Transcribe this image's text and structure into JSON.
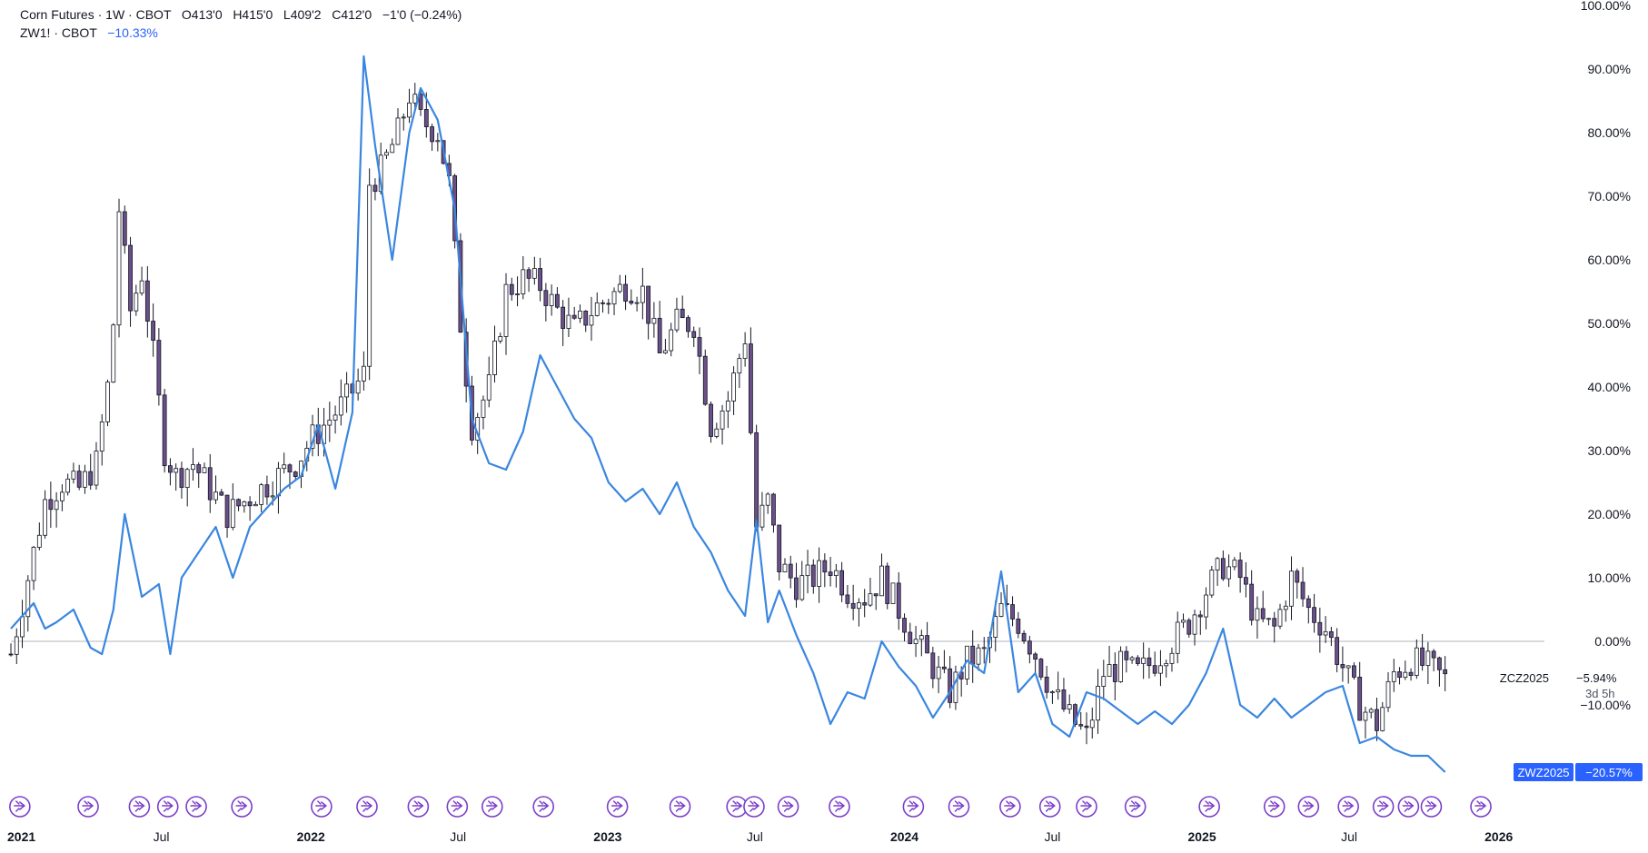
{
  "legend": {
    "main_name": "Corn Futures",
    "main_interval": "1W",
    "main_exchange": "CBOT",
    "ohlc": {
      "open": "O413'0",
      "high": "H415'0",
      "low": "L409'2",
      "close": "C412'0",
      "change": "−1'0 (−0.24%)"
    },
    "compare_symbol": "ZW1!",
    "compare_exchange": "CBOT",
    "compare_change": "−10.33%"
  },
  "colors": {
    "candle_up_body": "#ffffff",
    "candle_down_body": "#6b4f8a",
    "candle_wick": "#131722",
    "compare_line": "#3a86e0",
    "zero_line": "#b2b5be",
    "event_icon": "#7b3fc9",
    "badge_blue": "#2962ff"
  },
  "price_axis": {
    "ticks": [
      "100.00%",
      "90.00%",
      "80.00%",
      "70.00%",
      "60.00%",
      "50.00%",
      "40.00%",
      "30.00%",
      "20.00%",
      "10.00%",
      "0.00%",
      "−10.00%"
    ]
  },
  "time_axis": {
    "labels": [
      {
        "text": "2021",
        "date": "2021-01-01",
        "year": true
      },
      {
        "text": "Jul",
        "date": "2021-07-01",
        "year": false
      },
      {
        "text": "2022",
        "date": "2022-01-01",
        "year": true
      },
      {
        "text": "Jul",
        "date": "2022-07-01",
        "year": false
      },
      {
        "text": "2023",
        "date": "2023-01-01",
        "year": true
      },
      {
        "text": "Jul",
        "date": "2023-07-01",
        "year": false
      },
      {
        "text": "2024",
        "date": "2024-01-01",
        "year": true
      },
      {
        "text": "Jul",
        "date": "2024-07-01",
        "year": false
      },
      {
        "text": "2025",
        "date": "2025-01-01",
        "year": true
      },
      {
        "text": "Jul",
        "date": "2025-07-01",
        "year": false
      },
      {
        "text": "2026",
        "date": "2026-01-01",
        "year": true
      }
    ]
  },
  "price_tags": {
    "main_symbol": "ZCZ2025",
    "main_value": "−5.94%",
    "main_countdown": "3d 5h",
    "compare_symbol": "ZWZ2025",
    "compare_value": "−20.57%"
  },
  "chart_data": {
    "type": "line",
    "title": "",
    "y_unit": "percent change",
    "ylim": [
      -20,
      100
    ],
    "x_range": [
      "2020-12-28",
      "2026-02-15"
    ],
    "grid": false,
    "legend_position": "top-left",
    "series": [
      {
        "name": "ZCZ2025",
        "style": "candlestick",
        "points": [
          [
            "2020-12-28",
            -2
          ],
          [
            "2021-01-18",
            10
          ],
          [
            "2021-02-08",
            22
          ],
          [
            "2021-03-01",
            25
          ],
          [
            "2021-03-22",
            24
          ],
          [
            "2021-04-12",
            28
          ],
          [
            "2021-04-26",
            40
          ],
          [
            "2021-05-03",
            50
          ],
          [
            "2021-05-10",
            68
          ],
          [
            "2021-05-24",
            52
          ],
          [
            "2021-06-07",
            58
          ],
          [
            "2021-06-21",
            45
          ],
          [
            "2021-07-05",
            30
          ],
          [
            "2021-07-19",
            26
          ],
          [
            "2021-08-09",
            28
          ],
          [
            "2021-08-30",
            24
          ],
          [
            "2021-09-20",
            20
          ],
          [
            "2021-10-11",
            22
          ],
          [
            "2021-11-01",
            24
          ],
          [
            "2021-11-22",
            26
          ],
          [
            "2021-12-13",
            28
          ],
          [
            "2022-01-03",
            32
          ],
          [
            "2022-01-24",
            35
          ],
          [
            "2022-02-14",
            38
          ],
          [
            "2022-03-07",
            42
          ],
          [
            "2022-03-14",
            72
          ],
          [
            "2022-03-28",
            74
          ],
          [
            "2022-04-18",
            80
          ],
          [
            "2022-05-02",
            86
          ],
          [
            "2022-05-16",
            82
          ],
          [
            "2022-06-06",
            80
          ],
          [
            "2022-06-20",
            72
          ],
          [
            "2022-07-04",
            50
          ],
          [
            "2022-07-18",
            34
          ],
          [
            "2022-08-08",
            40
          ],
          [
            "2022-08-29",
            55
          ],
          [
            "2022-09-19",
            57
          ],
          [
            "2022-10-10",
            56
          ],
          [
            "2022-10-31",
            52
          ],
          [
            "2022-11-21",
            49
          ],
          [
            "2022-12-12",
            52
          ],
          [
            "2023-01-02",
            54
          ],
          [
            "2023-01-23",
            56
          ],
          [
            "2023-02-13",
            55
          ],
          [
            "2023-03-06",
            45
          ],
          [
            "2023-03-27",
            50
          ],
          [
            "2023-04-17",
            50
          ],
          [
            "2023-05-08",
            34
          ],
          [
            "2023-05-29",
            38
          ],
          [
            "2023-06-19",
            48
          ],
          [
            "2023-07-03",
            18
          ],
          [
            "2023-07-17",
            22
          ],
          [
            "2023-07-31",
            12
          ],
          [
            "2023-08-21",
            9
          ],
          [
            "2023-09-11",
            10
          ],
          [
            "2023-10-02",
            12
          ],
          [
            "2023-10-23",
            8
          ],
          [
            "2023-11-13",
            7
          ],
          [
            "2023-12-04",
            10
          ],
          [
            "2023-12-25",
            5
          ],
          [
            "2024-01-15",
            0
          ],
          [
            "2024-02-05",
            -4
          ],
          [
            "2024-02-26",
            -8
          ],
          [
            "2024-03-18",
            -3
          ],
          [
            "2024-04-08",
            -2
          ],
          [
            "2024-04-29",
            5
          ],
          [
            "2024-05-20",
            3
          ],
          [
            "2024-06-10",
            -2
          ],
          [
            "2024-07-01",
            -8
          ],
          [
            "2024-07-22",
            -12
          ],
          [
            "2024-08-12",
            -15
          ],
          [
            "2024-09-02",
            -5
          ],
          [
            "2024-09-23",
            -4
          ],
          [
            "2024-10-14",
            -5
          ],
          [
            "2024-11-04",
            -3
          ],
          [
            "2024-11-25",
            0
          ],
          [
            "2024-12-16",
            3
          ],
          [
            "2025-01-06",
            8
          ],
          [
            "2025-01-27",
            12
          ],
          [
            "2025-02-17",
            10
          ],
          [
            "2025-03-10",
            3
          ],
          [
            "2025-03-31",
            2
          ],
          [
            "2025-04-21",
            10
          ],
          [
            "2025-05-12",
            5
          ],
          [
            "2025-06-02",
            2
          ],
          [
            "2025-06-23",
            -4
          ],
          [
            "2025-07-14",
            -10
          ],
          [
            "2025-08-04",
            -13
          ],
          [
            "2025-08-25",
            -5
          ],
          [
            "2025-09-15",
            -3
          ],
          [
            "2025-10-06",
            -4
          ],
          [
            "2025-10-27",
            -6
          ]
        ]
      },
      {
        "name": "ZWZ2025",
        "style": "line",
        "points": [
          [
            "2020-12-28",
            2
          ],
          [
            "2021-01-11",
            4
          ],
          [
            "2021-01-25",
            6
          ],
          [
            "2021-02-08",
            2
          ],
          [
            "2021-02-22",
            3
          ],
          [
            "2021-03-15",
            5
          ],
          [
            "2021-04-05",
            -1
          ],
          [
            "2021-04-19",
            -2
          ],
          [
            "2021-05-03",
            5
          ],
          [
            "2021-05-17",
            20
          ],
          [
            "2021-06-07",
            7
          ],
          [
            "2021-06-28",
            9
          ],
          [
            "2021-07-12",
            -2
          ],
          [
            "2021-07-26",
            10
          ],
          [
            "2021-08-16",
            14
          ],
          [
            "2021-09-06",
            18
          ],
          [
            "2021-09-27",
            10
          ],
          [
            "2021-10-18",
            18
          ],
          [
            "2021-11-08",
            21
          ],
          [
            "2021-11-29",
            24
          ],
          [
            "2021-12-20",
            26
          ],
          [
            "2022-01-10",
            34
          ],
          [
            "2022-01-31",
            24
          ],
          [
            "2022-02-21",
            36
          ],
          [
            "2022-03-07",
            92
          ],
          [
            "2022-03-21",
            78
          ],
          [
            "2022-04-11",
            60
          ],
          [
            "2022-05-02",
            80
          ],
          [
            "2022-05-16",
            87
          ],
          [
            "2022-06-06",
            82
          ],
          [
            "2022-06-27",
            68
          ],
          [
            "2022-07-18",
            35
          ],
          [
            "2022-08-08",
            28
          ],
          [
            "2022-08-29",
            27
          ],
          [
            "2022-09-19",
            33
          ],
          [
            "2022-10-10",
            45
          ],
          [
            "2022-10-31",
            40
          ],
          [
            "2022-11-21",
            35
          ],
          [
            "2022-12-12",
            32
          ],
          [
            "2023-01-02",
            25
          ],
          [
            "2023-01-23",
            22
          ],
          [
            "2023-02-13",
            24
          ],
          [
            "2023-03-06",
            20
          ],
          [
            "2023-03-27",
            25
          ],
          [
            "2023-04-17",
            18
          ],
          [
            "2023-05-08",
            14
          ],
          [
            "2023-05-29",
            8
          ],
          [
            "2023-06-19",
            4
          ],
          [
            "2023-07-03",
            19
          ],
          [
            "2023-07-17",
            3
          ],
          [
            "2023-07-31",
            8
          ],
          [
            "2023-08-21",
            1
          ],
          [
            "2023-09-11",
            -5
          ],
          [
            "2023-10-02",
            -13
          ],
          [
            "2023-10-23",
            -8
          ],
          [
            "2023-11-13",
            -9
          ],
          [
            "2023-12-04",
            0
          ],
          [
            "2023-12-25",
            -4
          ],
          [
            "2024-01-15",
            -7
          ],
          [
            "2024-02-05",
            -12
          ],
          [
            "2024-02-26",
            -8
          ],
          [
            "2024-03-18",
            -3
          ],
          [
            "2024-04-08",
            -5
          ],
          [
            "2024-04-29",
            11
          ],
          [
            "2024-05-20",
            -8
          ],
          [
            "2024-06-10",
            -5
          ],
          [
            "2024-07-01",
            -13
          ],
          [
            "2024-07-22",
            -15
          ],
          [
            "2024-08-12",
            -8
          ],
          [
            "2024-09-02",
            -9
          ],
          [
            "2024-09-23",
            -11
          ],
          [
            "2024-10-14",
            -13
          ],
          [
            "2024-11-04",
            -11
          ],
          [
            "2024-11-25",
            -13
          ],
          [
            "2024-12-16",
            -10
          ],
          [
            "2025-01-06",
            -5
          ],
          [
            "2025-01-27",
            2
          ],
          [
            "2025-02-17",
            -10
          ],
          [
            "2025-03-10",
            -12
          ],
          [
            "2025-03-31",
            -9
          ],
          [
            "2025-04-21",
            -12
          ],
          [
            "2025-05-12",
            -10
          ],
          [
            "2025-06-02",
            -8
          ],
          [
            "2025-06-23",
            -7
          ],
          [
            "2025-07-14",
            -16
          ],
          [
            "2025-08-04",
            -15
          ],
          [
            "2025-08-25",
            -17
          ],
          [
            "2025-09-15",
            -18
          ],
          [
            "2025-10-06",
            -18
          ],
          [
            "2025-10-27",
            -20.57
          ]
        ]
      }
    ],
    "events_dates": [
      "2021-01-08",
      "2021-04-02",
      "2021-06-04",
      "2021-07-09",
      "2021-08-13",
      "2021-10-08",
      "2022-01-14",
      "2022-03-11",
      "2022-05-13",
      "2022-06-30",
      "2022-08-12",
      "2022-10-14",
      "2023-01-13",
      "2023-03-31",
      "2023-06-09",
      "2023-06-30",
      "2023-08-11",
      "2023-10-13",
      "2024-01-12",
      "2024-03-08",
      "2024-05-10",
      "2024-06-28",
      "2024-08-12",
      "2024-10-11",
      "2025-01-10",
      "2025-03-31",
      "2025-05-12",
      "2025-06-30",
      "2025-08-12",
      "2025-09-12",
      "2025-10-10",
      "2025-12-10"
    ]
  }
}
